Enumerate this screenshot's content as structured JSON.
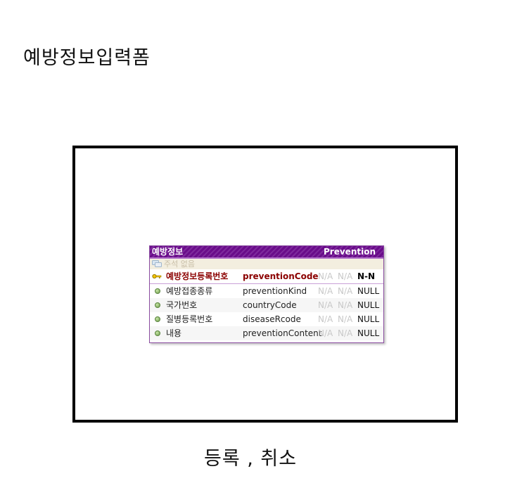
{
  "page": {
    "title": "예방정보입력폼",
    "actions": "등록 , 취소"
  },
  "entity": {
    "logical_name": "예방정보",
    "physical_name": "Prevention",
    "comment": "주석 없음",
    "colors": {
      "header": "#6a0c8a",
      "primary_key": "#8b0000",
      "comment_bg": "#f3eedf"
    },
    "attributes": [
      {
        "icon": "key-icon",
        "logical": "예방정보등록번호",
        "physical": "preventionCode",
        "na1": "N/A",
        "na2": "N/A",
        "nullable": "N-N"
      },
      {
        "icon": "attribute-bullet-icon",
        "logical": "예방접종종류",
        "physical": "preventionKind",
        "na1": "N/A",
        "na2": "N/A",
        "nullable": "NULL"
      },
      {
        "icon": "attribute-bullet-icon",
        "logical": "국가번호",
        "physical": "countryCode",
        "na1": "N/A",
        "na2": "N/A",
        "nullable": "NULL"
      },
      {
        "icon": "attribute-bullet-icon",
        "logical": "질병등록번호",
        "physical": "diseaseRcode",
        "na1": "N/A",
        "na2": "N/A",
        "nullable": "NULL"
      },
      {
        "icon": "attribute-bullet-icon",
        "logical": "내용",
        "physical": "preventionContent",
        "na1": "N/A",
        "na2": "N/A",
        "nullable": "NULL"
      }
    ]
  }
}
